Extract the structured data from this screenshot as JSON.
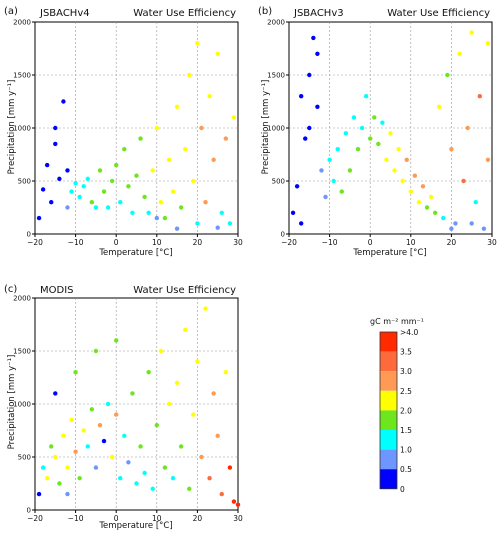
{
  "figure": {
    "panels": [
      {
        "letter": "(a)",
        "model": "JSBACHv4",
        "metric": "Water Use Efficiency",
        "xlabel": "Temperature [°C]",
        "ylabel": "Precipitation [mm y⁻¹]"
      },
      {
        "letter": "(b)",
        "model": "JSBACHv3",
        "metric": "Water Use Efficiency",
        "xlabel": "Temperature [°C]",
        "ylabel": "Precipitation [mm y⁻¹]"
      },
      {
        "letter": "(c)",
        "model": "MODIS",
        "metric": "Water Use Efficiency",
        "xlabel": "Temperature [°C]",
        "ylabel": "Precipitation [mm y⁻¹]"
      }
    ],
    "colorbar": {
      "unit": "gC m⁻² mm⁻¹",
      "labels": [
        ">4.0",
        "3.5",
        "3.0",
        "2.5",
        "2.0",
        "1.5",
        "1.0",
        "0.5",
        "0"
      ],
      "colors": [
        "#ff2a00",
        "#ff6a3c",
        "#ff9a55",
        "#ffff00",
        "#6ee61e",
        "#00ffff",
        "#6e96ff",
        "#0000ff"
      ]
    }
  },
  "chart_data": [
    {
      "type": "scatter",
      "panel": "(a)",
      "title": "JSBACHv4",
      "subtitle": "Water Use Efficiency",
      "xlabel": "Temperature [°C]",
      "ylabel": "Precipitation [mm y⁻¹]",
      "xlim": [
        -20,
        30
      ],
      "ylim": [
        0,
        2000
      ],
      "xticks": [
        -20,
        -10,
        0,
        10,
        20,
        30
      ],
      "yticks": [
        0,
        500,
        1000,
        1500,
        2000
      ],
      "grid": true,
      "color_variable": "Water Use Efficiency [gC m⁻² mm⁻¹]",
      "points": [
        [
          -19,
          150,
          0.2
        ],
        [
          -18,
          420,
          0.3
        ],
        [
          -17,
          650,
          0.3
        ],
        [
          -16,
          300,
          0.3
        ],
        [
          -15,
          850,
          0.4
        ],
        [
          -14,
          520,
          0.4
        ],
        [
          -13,
          1250,
          0.4
        ],
        [
          -12,
          600,
          0.4
        ],
        [
          -12,
          250,
          0.8
        ],
        [
          -11,
          400,
          1.2
        ],
        [
          -10,
          480,
          1.3
        ],
        [
          -9,
          350,
          1.2
        ],
        [
          -8,
          450,
          1.4
        ],
        [
          -7,
          520,
          1.4
        ],
        [
          -6,
          300,
          1.5
        ],
        [
          -5,
          250,
          1.2
        ],
        [
          -4,
          600,
          1.5
        ],
        [
          -3,
          400,
          1.6
        ],
        [
          -2,
          250,
          1.4
        ],
        [
          -1,
          500,
          1.7
        ],
        [
          0,
          650,
          1.6
        ],
        [
          1,
          300,
          1.3
        ],
        [
          2,
          800,
          1.7
        ],
        [
          3,
          450,
          1.6
        ],
        [
          4,
          200,
          1.2
        ],
        [
          5,
          550,
          1.8
        ],
        [
          6,
          900,
          1.8
        ],
        [
          7,
          350,
          1.7
        ],
        [
          8,
          200,
          1.4
        ],
        [
          9,
          600,
          2.0
        ],
        [
          10,
          1000,
          2.0
        ],
        [
          11,
          300,
          2.1
        ],
        [
          12,
          150,
          1.6
        ],
        [
          13,
          700,
          2.1
        ],
        [
          14,
          400,
          2.3
        ],
        [
          15,
          1200,
          2.0
        ],
        [
          16,
          250,
          1.8
        ],
        [
          17,
          800,
          2.2
        ],
        [
          18,
          1500,
          2.0
        ],
        [
          19,
          500,
          2.4
        ],
        [
          20,
          1800,
          2.1
        ],
        [
          21,
          1000,
          2.6
        ],
        [
          22,
          300,
          2.8
        ],
        [
          23,
          1300,
          2.4
        ],
        [
          24,
          700,
          2.9
        ],
        [
          25,
          1700,
          2.2
        ],
        [
          26,
          200,
          1.4
        ],
        [
          27,
          900,
          2.6
        ],
        [
          28,
          100,
          1.0
        ],
        [
          29,
          1100,
          2.3
        ],
        [
          20,
          100,
          1.0
        ],
        [
          15,
          50,
          0.5
        ],
        [
          25,
          60,
          0.6
        ],
        [
          10,
          150,
          0.8
        ],
        [
          -15,
          1000,
          0.3
        ]
      ]
    },
    {
      "type": "scatter",
      "panel": "(b)",
      "title": "JSBACHv3",
      "subtitle": "Water Use Efficiency",
      "xlabel": "Temperature [°C]",
      "ylabel": "Precipitation [mm y⁻¹]",
      "xlim": [
        -20,
        30
      ],
      "ylim": [
        0,
        2000
      ],
      "xticks": [
        -20,
        -10,
        0,
        10,
        20,
        30
      ],
      "yticks": [
        0,
        500,
        1000,
        1500,
        2000
      ],
      "grid": true,
      "color_variable": "Water Use Efficiency [gC m⁻² mm⁻¹]",
      "points": [
        [
          -19,
          200,
          0.3
        ],
        [
          -18,
          450,
          0.3
        ],
        [
          -17,
          100,
          0.2
        ],
        [
          -16,
          900,
          0.3
        ],
        [
          -15,
          1500,
          0.3
        ],
        [
          -14,
          1850,
          0.3
        ],
        [
          -13,
          1200,
          0.4
        ],
        [
          -12,
          600,
          0.6
        ],
        [
          -11,
          350,
          0.8
        ],
        [
          -10,
          700,
          1.0
        ],
        [
          -9,
          500,
          1.2
        ],
        [
          -8,
          800,
          1.3
        ],
        [
          -7,
          400,
          1.5
        ],
        [
          -6,
          950,
          1.4
        ],
        [
          -5,
          600,
          1.7
        ],
        [
          -4,
          1100,
          1.3
        ],
        [
          -3,
          800,
          1.6
        ],
        [
          -2,
          1000,
          1.2
        ],
        [
          -1,
          1300,
          1.4
        ],
        [
          0,
          900,
          1.6
        ],
        [
          1,
          1100,
          1.8
        ],
        [
          2,
          850,
          1.9
        ],
        [
          3,
          1050,
          1.3
        ],
        [
          4,
          700,
          2.0
        ],
        [
          5,
          950,
          2.1
        ],
        [
          6,
          600,
          2.2
        ],
        [
          7,
          800,
          2.4
        ],
        [
          8,
          500,
          2.3
        ],
        [
          9,
          700,
          2.6
        ],
        [
          10,
          400,
          2.2
        ],
        [
          11,
          550,
          2.5
        ],
        [
          12,
          300,
          2.0
        ],
        [
          13,
          450,
          2.7
        ],
        [
          14,
          250,
          1.9
        ],
        [
          15,
          350,
          2.4
        ],
        [
          16,
          200,
          1.6
        ],
        [
          17,
          1200,
          2.0
        ],
        [
          18,
          150,
          1.2
        ],
        [
          19,
          1500,
          1.8
        ],
        [
          20,
          800,
          2.6
        ],
        [
          21,
          100,
          0.8
        ],
        [
          22,
          1700,
          2.1
        ],
        [
          23,
          500,
          3.0
        ],
        [
          24,
          1000,
          2.8
        ],
        [
          25,
          1900,
          2.2
        ],
        [
          26,
          300,
          1.4
        ],
        [
          27,
          1300,
          3.2
        ],
        [
          28,
          50,
          0.5
        ],
        [
          29,
          700,
          2.9
        ],
        [
          29,
          1800,
          2.3
        ],
        [
          -15,
          1000,
          0.3
        ],
        [
          -17,
          1300,
          0.3
        ],
        [
          -13,
          1700,
          0.3
        ],
        [
          25,
          100,
          0.5
        ],
        [
          20,
          50,
          0.6
        ]
      ]
    },
    {
      "type": "scatter",
      "panel": "(c)",
      "title": "MODIS",
      "subtitle": "Water Use Efficiency",
      "xlabel": "Temperature [°C]",
      "ylabel": "Precipitation [mm y⁻¹]",
      "xlim": [
        -20,
        30
      ],
      "ylim": [
        0,
        2000
      ],
      "xticks": [
        -20,
        -10,
        0,
        10,
        20,
        30
      ],
      "yticks": [
        0,
        500,
        1000,
        1500,
        2000
      ],
      "grid": true,
      "color_variable": "Water Use Efficiency [gC m⁻² mm⁻¹]",
      "points": [
        [
          -19,
          150,
          0.4
        ],
        [
          -18,
          400,
          1.2
        ],
        [
          -17,
          300,
          2.0
        ],
        [
          -16,
          600,
          1.5
        ],
        [
          -15,
          500,
          2.3
        ],
        [
          -14,
          250,
          1.8
        ],
        [
          -13,
          700,
          2.1
        ],
        [
          -12,
          400,
          2.4
        ],
        [
          -11,
          850,
          2.0
        ],
        [
          -10,
          550,
          2.6
        ],
        [
          -9,
          300,
          1.7
        ],
        [
          -8,
          750,
          2.2
        ],
        [
          -7,
          600,
          1.0
        ],
        [
          -6,
          950,
          1.9
        ],
        [
          -5,
          400,
          0.8
        ],
        [
          -4,
          800,
          2.5
        ],
        [
          -3,
          650,
          0.4
        ],
        [
          -2,
          1000,
          1.4
        ],
        [
          -1,
          500,
          2.1
        ],
        [
          0,
          900,
          2.8
        ],
        [
          1,
          300,
          1.2
        ],
        [
          2,
          700,
          1.1
        ],
        [
          3,
          450,
          0.9
        ],
        [
          4,
          1100,
          1.6
        ],
        [
          5,
          250,
          1.3
        ],
        [
          6,
          600,
          1.5
        ],
        [
          7,
          350,
          1.4
        ],
        [
          8,
          1300,
          1.8
        ],
        [
          9,
          200,
          1.1
        ],
        [
          10,
          800,
          1.7
        ],
        [
          11,
          1500,
          2.0
        ],
        [
          12,
          400,
          1.6
        ],
        [
          13,
          1000,
          2.2
        ],
        [
          14,
          300,
          1.3
        ],
        [
          15,
          1200,
          2.1
        ],
        [
          16,
          600,
          1.9
        ],
        [
          17,
          1700,
          2.2
        ],
        [
          18,
          200,
          1.5
        ],
        [
          19,
          900,
          2.4
        ],
        [
          20,
          1400,
          2.0
        ],
        [
          21,
          500,
          2.7
        ],
        [
          22,
          1900,
          2.1
        ],
        [
          23,
          300,
          3.0
        ],
        [
          24,
          1100,
          2.5
        ],
        [
          25,
          700,
          2.8
        ],
        [
          26,
          150,
          3.3
        ],
        [
          27,
          1300,
          2.3
        ],
        [
          28,
          400,
          3.6
        ],
        [
          29,
          80,
          4.2
        ],
        [
          30,
          50,
          4.5
        ],
        [
          -15,
          1100,
          0.4
        ],
        [
          -10,
          1300,
          1.5
        ],
        [
          -5,
          1500,
          1.7
        ],
        [
          0,
          1600,
          1.8
        ],
        [
          -12,
          150,
          0.8
        ]
      ]
    }
  ]
}
